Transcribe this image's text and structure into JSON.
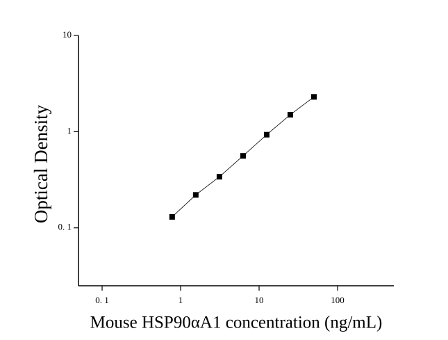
{
  "chart_data": {
    "type": "scatter",
    "xlabel": "Mouse HSP90αA1 concentration (ng/mL)",
    "ylabel": "Optical Density",
    "x": [
      0.78,
      1.56,
      3.125,
      6.25,
      12.5,
      25,
      50
    ],
    "series": [
      {
        "color": "#000000",
        "values": [
          0.13,
          0.22,
          0.34,
          0.56,
          0.93,
          1.5,
          2.3
        ]
      }
    ],
    "xscale": "log",
    "yscale": "log",
    "xlim": [
      0.05,
      500
    ],
    "ylim": [
      0.025,
      10
    ],
    "xticks": [
      {
        "value": 0.1,
        "label": "0. 1"
      },
      1,
      10,
      100
    ],
    "yticks": [
      {
        "value": 0.1,
        "label": "0. 1"
      },
      1,
      10
    ],
    "line": true
  }
}
